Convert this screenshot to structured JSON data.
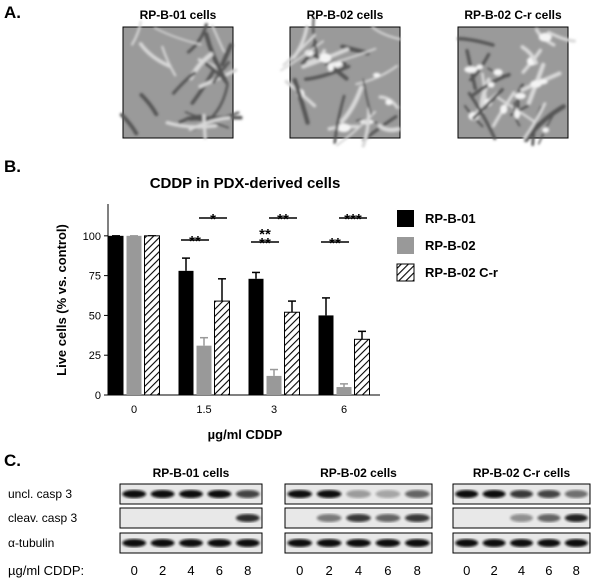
{
  "panel_a": {
    "letter": "A.",
    "images": [
      {
        "label": "RP-B-01 cells"
      },
      {
        "label": "RP-B-02 cells"
      },
      {
        "label": "RP-B-02 C-r cells"
      }
    ]
  },
  "panel_b_letter": "B.",
  "chart_data": {
    "type": "bar",
    "title": "CDDP in PDX-derived cells",
    "x_label": "µg/ml  CDDP",
    "y_label": "Live cells (% vs. control)",
    "categories": [
      "0",
      "1.5",
      "3",
      "6"
    ],
    "series": [
      {
        "name": "RP-B-01",
        "color": "#000000",
        "hatch": false,
        "values": [
          100,
          78,
          73,
          50
        ],
        "errors": [
          0,
          8,
          4,
          11
        ]
      },
      {
        "name": "RP-B-02",
        "color": "#999999",
        "hatch": false,
        "values": [
          100,
          31,
          12,
          5
        ],
        "errors": [
          0,
          5,
          4,
          2
        ]
      },
      {
        "name": "RP-B-02 C-r",
        "color": "#000000",
        "hatch": true,
        "values": [
          100,
          59,
          52,
          35
        ],
        "errors": [
          0,
          14,
          7,
          5
        ]
      }
    ],
    "ylim": [
      0,
      120
    ],
    "yticks": [
      0,
      25,
      50,
      75,
      100
    ],
    "grid": false,
    "legend": "right",
    "annotations": [
      {
        "label": "**"
      },
      {
        "label": "*"
      },
      {
        "label": "**"
      },
      {
        "label": "**"
      },
      {
        "label": "**"
      },
      {
        "label": "**"
      },
      {
        "label": "***"
      }
    ]
  },
  "panel_c": {
    "letter": "C.",
    "blots": [
      {
        "title": "RP-B-01 cells"
      },
      {
        "title": "RP-B-02 cells"
      },
      {
        "title": "RP-B-02  C-r cells"
      }
    ],
    "rows": [
      "uncl. casp 3",
      "cleav. casp 3",
      "α-tubulin"
    ],
    "dose_label": "µg/ml CDDP:",
    "doses": [
      "0",
      "2",
      "4",
      "6",
      "8"
    ]
  }
}
